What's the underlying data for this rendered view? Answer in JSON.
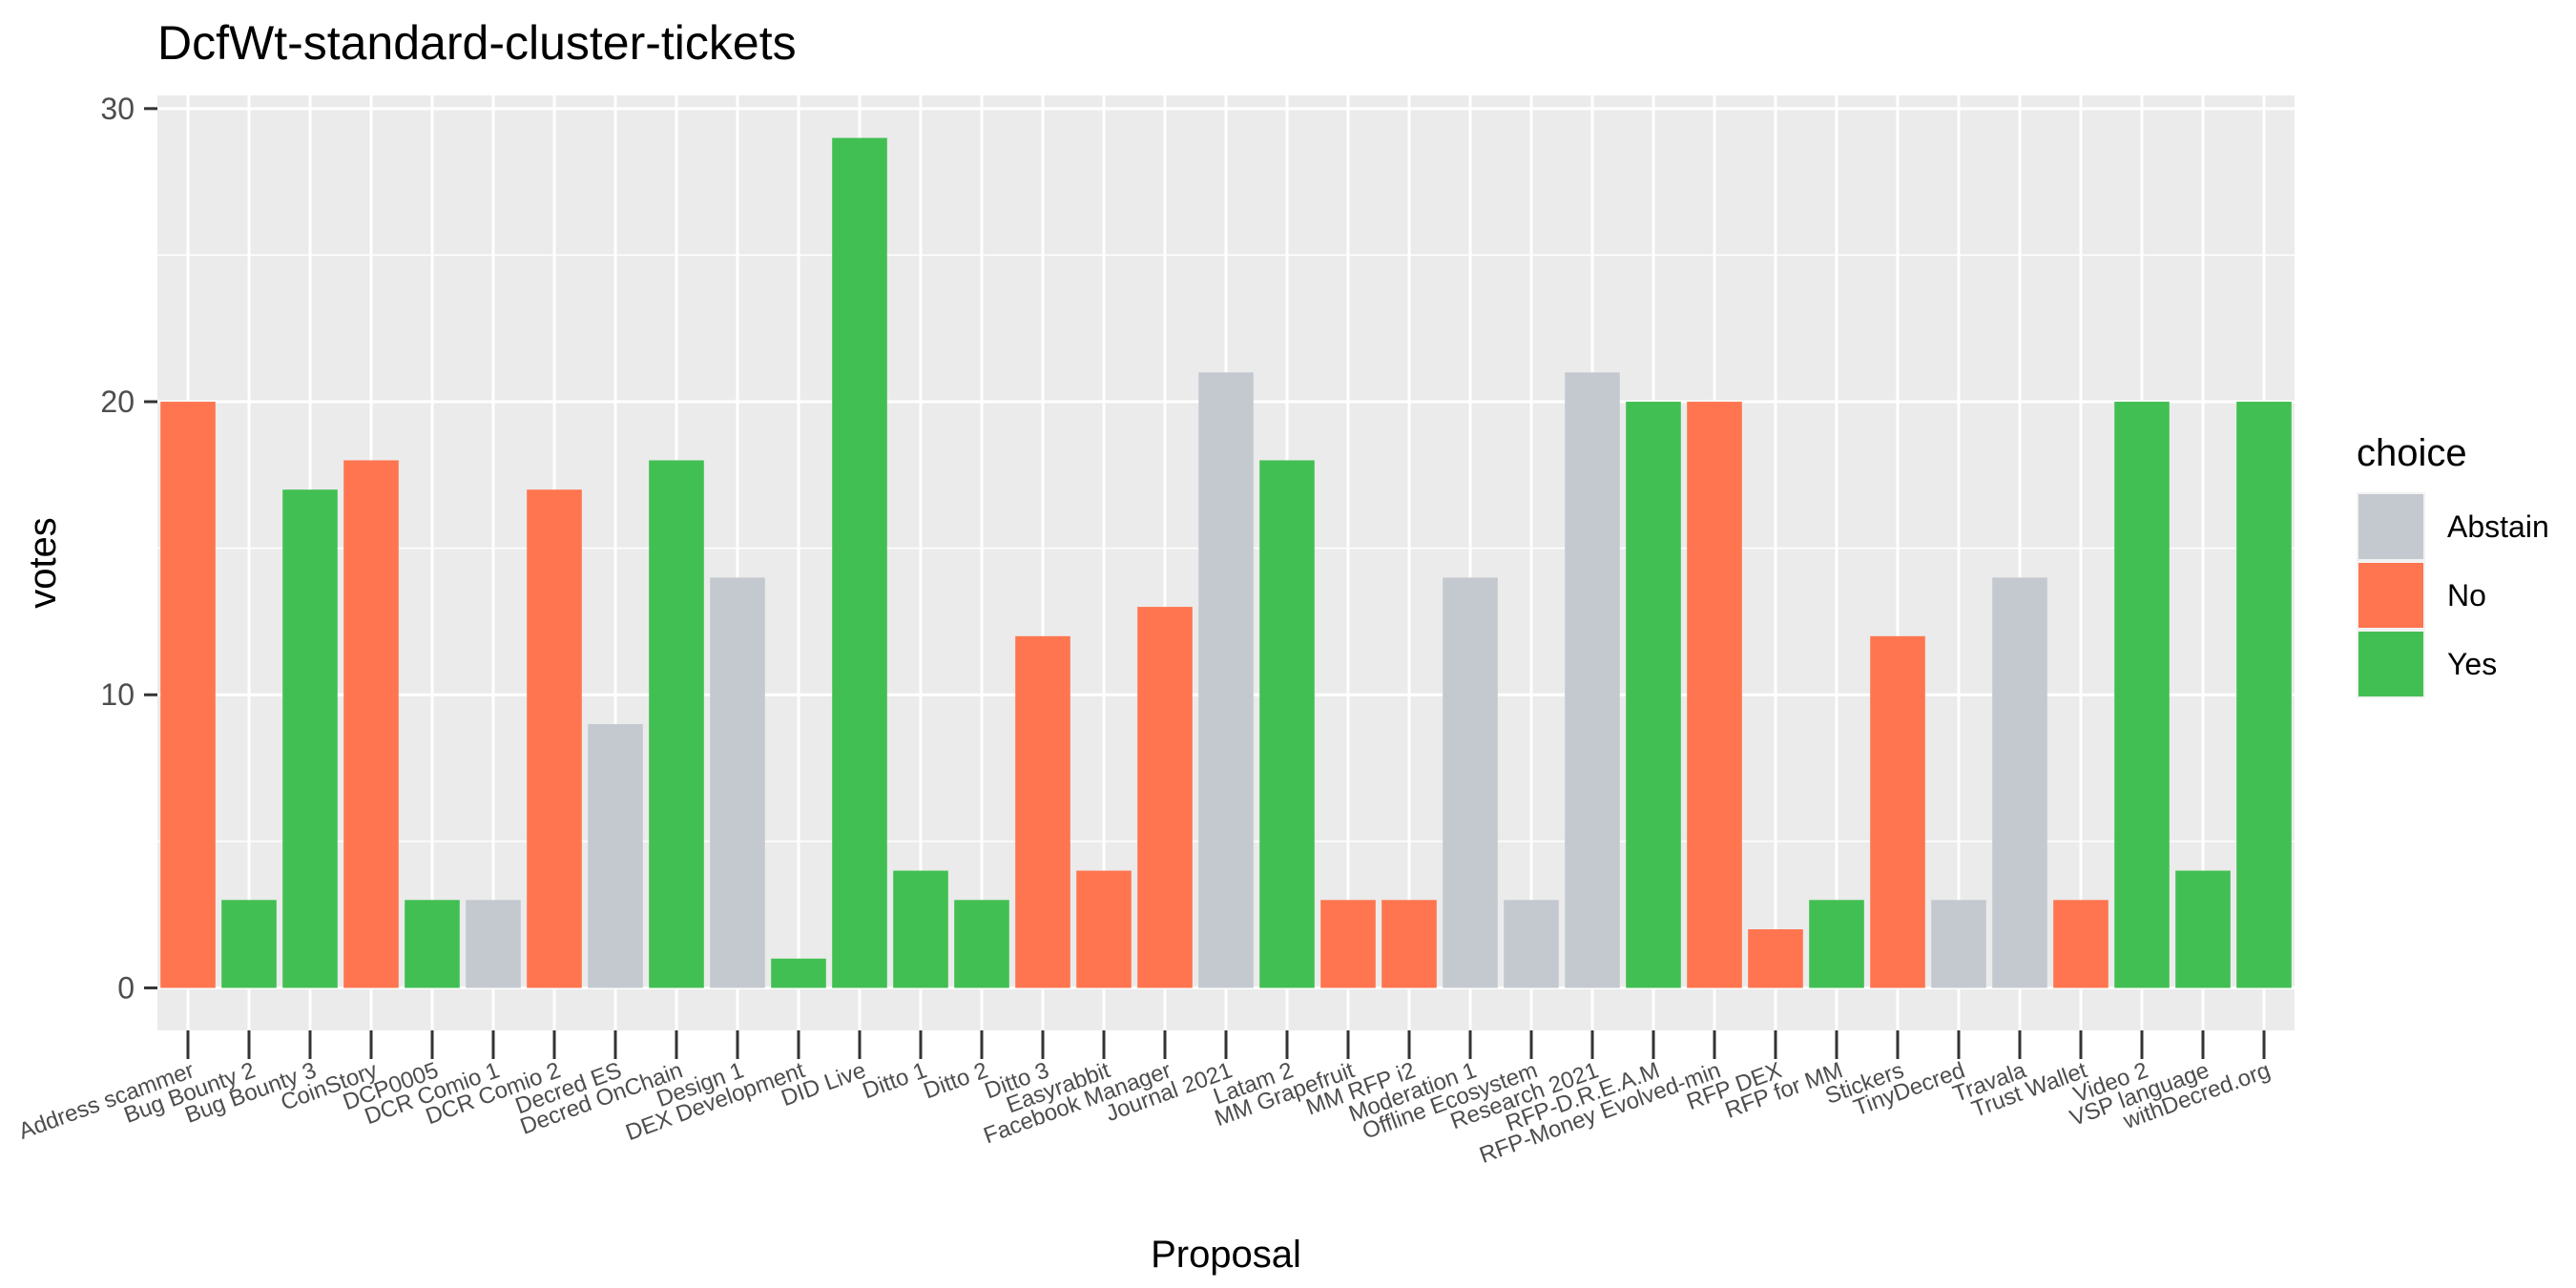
{
  "chart_data": {
    "type": "bar",
    "title": "DcfWt-standard-cluster-tickets",
    "xlabel": "Proposal",
    "ylabel": "votes",
    "ylim": [
      -1.45,
      30.45
    ],
    "yticks": [
      0,
      10,
      20,
      30
    ],
    "grid": true,
    "legend": {
      "title": "choice",
      "placement": "right",
      "entries": [
        {
          "label": "Abstain",
          "color": "#c4c9d0"
        },
        {
          "label": "No",
          "color": "#ff7550"
        },
        {
          "label": "Yes",
          "color": "#42bf53"
        }
      ]
    },
    "categories": [
      "Address scammer",
      "Bug Bounty 2",
      "Bug Bounty 3",
      "CoinStory",
      "DCP0005",
      "DCR Comio 1",
      "DCR Comio 2",
      "Decred ES",
      "Decred OnChain",
      "Design 1",
      "DEX Development",
      "DID Live",
      "Ditto 1",
      "Ditto 2",
      "Ditto 3",
      "Easyrabbit",
      "Facebook Manager",
      "Journal 2021",
      "Latam 2",
      "MM Grapefruit",
      "MM RFP i2",
      "Moderation 1",
      "Offline Ecosystem",
      "Research 2021",
      "RFP-D.R.E.A.M",
      "RFP-Money Evolved-min",
      "RFP DEX",
      "RFP for MM",
      "Stickers",
      "TinyDecred",
      "Travala",
      "Trust Wallet",
      "Video 2",
      "VSP language",
      "withDecred.org"
    ],
    "bars": [
      {
        "category": "Address scammer",
        "choice": "No",
        "value": 20
      },
      {
        "category": "Bug Bounty 2",
        "choice": "Yes",
        "value": 3
      },
      {
        "category": "Bug Bounty 2",
        "choice": "Yes",
        "value": 17
      },
      {
        "category": "Bug Bounty 3",
        "choice": "No",
        "value": 18
      },
      {
        "category": "CoinStory",
        "choice": "Yes",
        "value": 3
      },
      {
        "category": "DCP0005",
        "choice": "Abstain",
        "value": 3
      },
      {
        "category": "DCR Comio 1",
        "choice": "No",
        "value": 17
      },
      {
        "category": "DCR Comio 2",
        "choice": "Abstain",
        "value": 9
      },
      {
        "category": "Decred ES",
        "choice": "Yes",
        "value": 18
      },
      {
        "category": "Decred OnChain",
        "choice": "Abstain",
        "value": 14
      },
      {
        "category": "Design 1",
        "choice": "Yes",
        "value": 1
      },
      {
        "category": "DEX Development",
        "choice": "Yes",
        "value": 29
      },
      {
        "category": "DID Live",
        "choice": "Yes",
        "value": 4
      },
      {
        "category": "Ditto 1",
        "choice": "Yes",
        "value": 3
      },
      {
        "category": "Ditto 2",
        "choice": "No",
        "value": 12
      },
      {
        "category": "Ditto 3",
        "choice": "No",
        "value": 4
      },
      {
        "category": "Easyrabbit",
        "choice": "No",
        "value": 13
      },
      {
        "category": "Facebook Manager",
        "choice": "Abstain",
        "value": 21
      },
      {
        "category": "Journal 2021",
        "choice": "Yes",
        "value": 18
      },
      {
        "category": "Latam 2",
        "choice": "No",
        "value": 3
      },
      {
        "category": "MM Grapefruit",
        "choice": "No",
        "value": 3
      },
      {
        "category": "MM RFP i2",
        "choice": "Abstain",
        "value": 14
      },
      {
        "category": "Moderation 1",
        "choice": "Abstain",
        "value": 3
      },
      {
        "category": "Offline Ecosystem",
        "choice": "Abstain",
        "value": 21
      },
      {
        "category": "Research 2021",
        "choice": "Yes",
        "value": 20
      },
      {
        "category": "RFP-D.R.E.A.M",
        "choice": "No",
        "value": 20
      },
      {
        "category": "RFP-Money Evolved-min",
        "choice": "No",
        "value": 2
      },
      {
        "category": "RFP DEX",
        "choice": "Yes",
        "value": 3
      },
      {
        "category": "RFP for MM",
        "choice": "No",
        "value": 12
      },
      {
        "category": "Stickers",
        "choice": "Abstain",
        "value": 3
      },
      {
        "category": "TinyDecred",
        "choice": "Abstain",
        "value": 14
      },
      {
        "category": "Travala",
        "choice": "No",
        "value": 3
      },
      {
        "category": "Trust Wallet",
        "choice": "Yes",
        "value": 20
      },
      {
        "category": "Video 2",
        "choice": "Yes",
        "value": 4
      },
      {
        "category": "withDecred.org",
        "choice": "Yes",
        "value": 20
      }
    ]
  }
}
